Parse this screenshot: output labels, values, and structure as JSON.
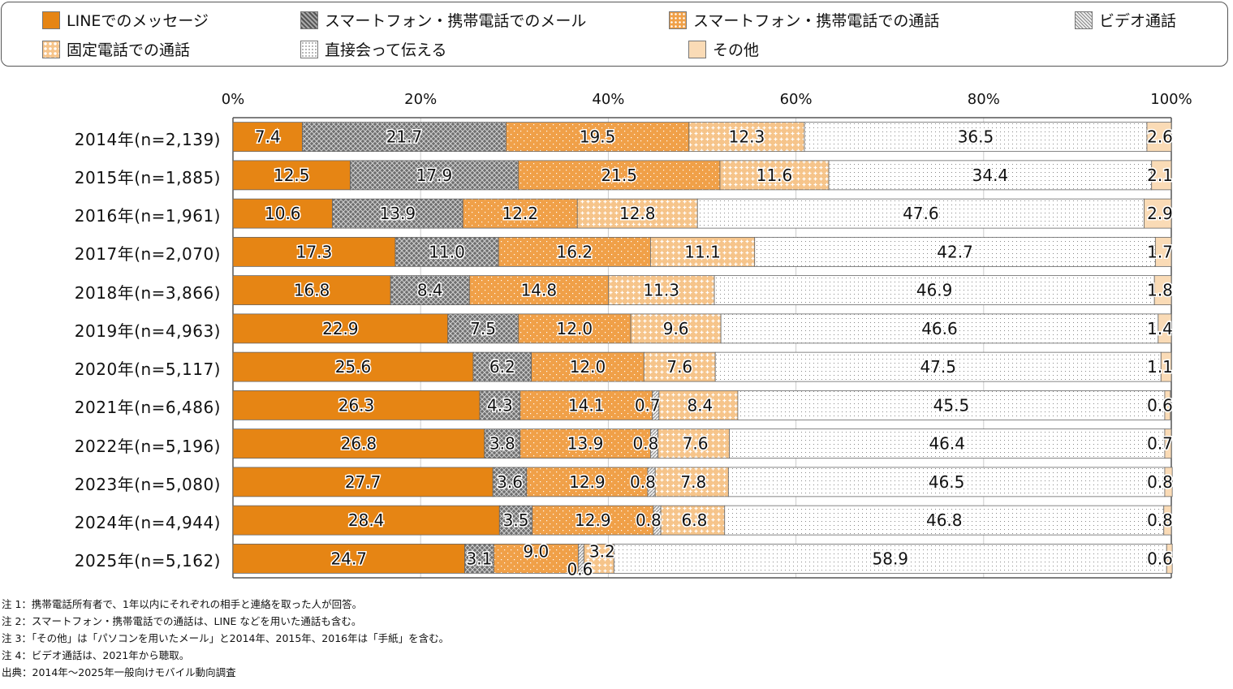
{
  "chart_data": {
    "type": "bar",
    "orientation": "horizontal",
    "stacked": "percent",
    "title": "",
    "xlabel": "",
    "ylabel": "",
    "xlim": [
      0,
      100
    ],
    "x_ticks": [
      "0%",
      "20%",
      "40%",
      "60%",
      "80%",
      "100%"
    ],
    "grid": true,
    "legend_position": "top",
    "categories": [
      "2014年(n=2,139)",
      "2015年(n=1,885)",
      "2016年(n=1,961)",
      "2017年(n=2,070)",
      "2018年(n=3,866)",
      "2019年(n=4,963)",
      "2020年(n=5,117)",
      "2021年(n=6,486)",
      "2022年(n=5,196)",
      "2023年(n=5,080)",
      "2024年(n=4,944)",
      "2025年(n=5,162)"
    ],
    "series": [
      {
        "name": "LINEでのメッセージ",
        "key": "line",
        "values": [
          7.4,
          12.5,
          10.6,
          17.3,
          16.8,
          22.9,
          25.6,
          26.3,
          26.8,
          27.7,
          28.4,
          24.7
        ]
      },
      {
        "name": "スマートフォン・携帯電話でのメール",
        "key": "mail",
        "values": [
          21.7,
          17.9,
          13.9,
          11.0,
          8.4,
          7.5,
          6.2,
          4.3,
          3.8,
          3.6,
          3.5,
          3.1
        ]
      },
      {
        "name": "スマートフォン・携帯電話での通話",
        "key": "mobilecall",
        "values": [
          19.5,
          21.5,
          12.2,
          16.2,
          14.8,
          12.0,
          12.0,
          14.1,
          13.9,
          12.9,
          12.9,
          9.0
        ]
      },
      {
        "name": "ビデオ通話",
        "key": "video",
        "values": [
          null,
          null,
          null,
          null,
          null,
          null,
          null,
          0.7,
          0.8,
          0.8,
          0.8,
          0.6
        ]
      },
      {
        "name": "固定電話での通話",
        "key": "landline",
        "values": [
          12.3,
          11.6,
          12.8,
          11.1,
          11.3,
          9.6,
          7.6,
          8.4,
          7.6,
          7.8,
          6.8,
          3.2
        ]
      },
      {
        "name": "直接会って伝える",
        "key": "inperson",
        "values": [
          36.5,
          34.4,
          47.6,
          42.7,
          46.9,
          46.6,
          47.5,
          45.5,
          46.4,
          46.5,
          46.8,
          58.9
        ]
      },
      {
        "name": "その他",
        "key": "other",
        "values": [
          2.6,
          2.1,
          2.9,
          1.7,
          1.8,
          1.4,
          1.1,
          0.6,
          0.7,
          0.8,
          0.8,
          0.6
        ]
      }
    ],
    "colors": {
      "line": "#E68514",
      "mail": "#6E6E6E",
      "mobilecall": "#F0A048",
      "video": "#BDBDBD",
      "landline": "#F6C48A",
      "inperson": "#FFFFFF",
      "other": "#FADBB6"
    }
  },
  "legend": {
    "items": [
      {
        "label": "LINEでのメッセージ",
        "key": "line"
      },
      {
        "label": "スマートフォン・携帯電話でのメール",
        "key": "mail"
      },
      {
        "label": "スマートフォン・携帯電話での通話",
        "key": "mobilecall"
      },
      {
        "label": "ビデオ通話",
        "key": "video"
      },
      {
        "label": "固定電話での通話",
        "key": "landline"
      },
      {
        "label": "直接会って伝える",
        "key": "inperson"
      },
      {
        "label": "その他",
        "key": "other"
      }
    ]
  },
  "notes": [
    "注 1：携帯電話所有者で、1年以内にそれぞれの相手と連絡を取った人が回答。",
    "注 2：スマートフォン・携帯電話での通話は、LINE などを用いた通話も含む。",
    "注 3：「その他」は「パソコンを用いたメール」と2014年、2015年、2016年は「手紙」を含む。",
    "注 4：ビデオ通話は、2021年から聴取。",
    "出典：2014年～2025年一般向けモバイル動向調査"
  ]
}
